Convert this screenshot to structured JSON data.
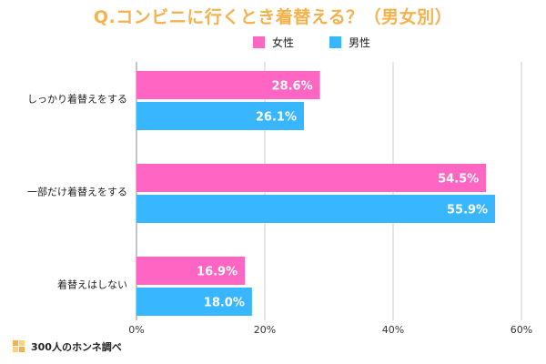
{
  "chart_data": {
    "type": "bar",
    "orientation": "horizontal",
    "title": "Q.コンビニに行くとき着替える？（男女別）",
    "categories": [
      "しっかり着替えをする",
      "一部だけ着替えをする",
      "着替えはしない"
    ],
    "series": [
      {
        "name": "女性",
        "values": [
          28.6,
          54.5,
          16.9
        ],
        "labels": [
          "28.6%",
          "54.5%",
          "16.9%"
        ],
        "color": "#ff66c4"
      },
      {
        "name": "男性",
        "values": [
          26.1,
          55.9,
          18.0
        ],
        "labels": [
          "26.1%",
          "55.9%",
          "18.0%"
        ],
        "color": "#38b6ff"
      }
    ],
    "xlim": [
      0,
      60
    ],
    "xticks": [
      0,
      20,
      40,
      60
    ],
    "xtick_labels": [
      "0%",
      "20%",
      "40%",
      "60%"
    ],
    "grid": true,
    "legend_position": "top-center"
  },
  "colors": {
    "title": "#f5b14c",
    "grid": "#cccccc",
    "axis": "#888888"
  },
  "footer": {
    "source": "300人のホンネ調べ",
    "logo_icon": "house-grid-icon"
  }
}
